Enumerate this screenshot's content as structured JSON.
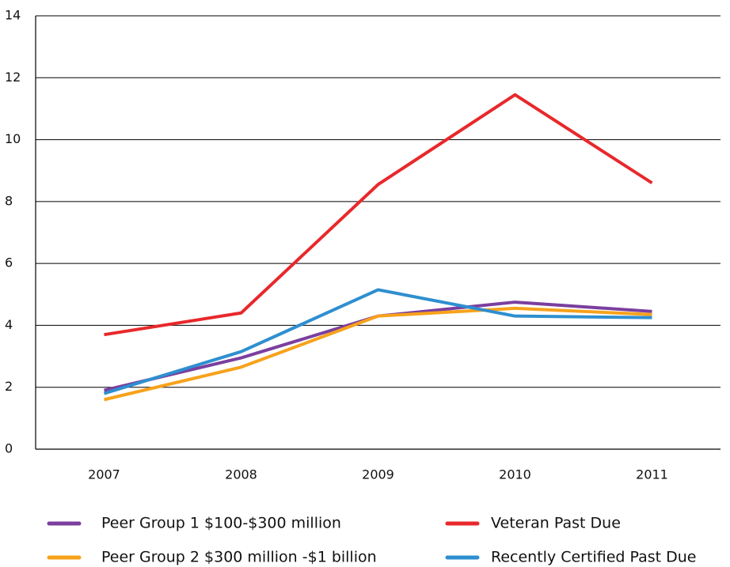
{
  "chart_data": {
    "type": "line",
    "categories": [
      "2007",
      "2008",
      "2009",
      "2010",
      "2011"
    ],
    "series": [
      {
        "name": "Peer Group 1 $100-$300 million",
        "color": "#7b3f9e",
        "values": [
          1.9,
          2.95,
          4.3,
          4.75,
          4.45
        ]
      },
      {
        "name": "Veteran Past Due",
        "color": "#e8282b",
        "values": [
          3.7,
          4.4,
          8.55,
          11.45,
          8.6
        ]
      },
      {
        "name": "Peer Group 2 $300 million -$1 billion",
        "color": "#f7a21b",
        "values": [
          1.6,
          2.65,
          4.3,
          4.55,
          4.35
        ]
      },
      {
        "name": "Recently Certified Past Due",
        "color": "#2e8fd0",
        "values": [
          1.8,
          3.15,
          5.15,
          4.3,
          4.25
        ]
      }
    ],
    "ylim": [
      0,
      14
    ],
    "yticks": [
      0,
      2,
      4,
      6,
      8,
      10,
      12,
      14
    ],
    "grid": true
  }
}
